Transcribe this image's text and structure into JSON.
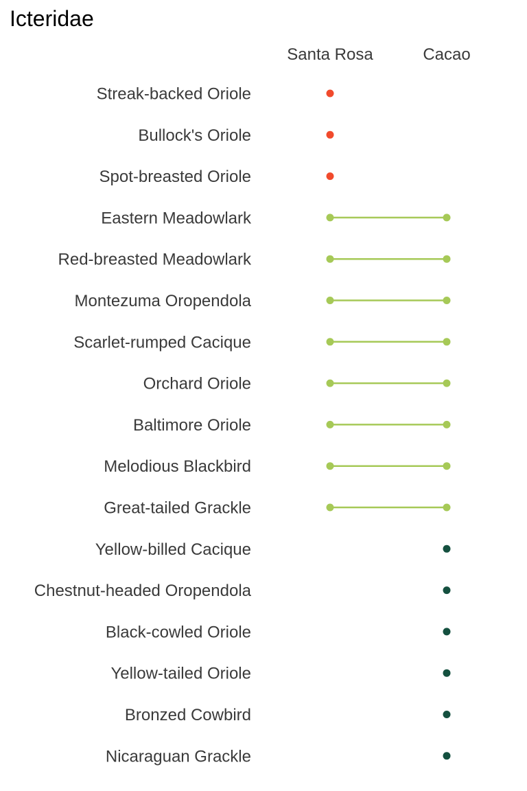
{
  "chart_data": {
    "type": "dumbbell",
    "title": "Icteridae",
    "columns": [
      "Santa Rosa",
      "Cacao"
    ],
    "colors": {
      "santa_rosa_only": "#f14a2c",
      "both": "#a6c957",
      "cacao_only": "#14503f"
    },
    "species": [
      {
        "name": "Streak-backed Oriole",
        "santa_rosa": true,
        "cacao": false
      },
      {
        "name": "Bullock's Oriole",
        "santa_rosa": true,
        "cacao": false
      },
      {
        "name": "Spot-breasted Oriole",
        "santa_rosa": true,
        "cacao": false
      },
      {
        "name": "Eastern Meadowlark",
        "santa_rosa": true,
        "cacao": true
      },
      {
        "name": "Red-breasted Meadowlark",
        "santa_rosa": true,
        "cacao": true
      },
      {
        "name": "Montezuma Oropendola",
        "santa_rosa": true,
        "cacao": true
      },
      {
        "name": "Scarlet-rumped Cacique",
        "santa_rosa": true,
        "cacao": true
      },
      {
        "name": "Orchard Oriole",
        "santa_rosa": true,
        "cacao": true
      },
      {
        "name": "Baltimore Oriole",
        "santa_rosa": true,
        "cacao": true
      },
      {
        "name": "Melodious Blackbird",
        "santa_rosa": true,
        "cacao": true
      },
      {
        "name": "Great-tailed Grackle",
        "santa_rosa": true,
        "cacao": true
      },
      {
        "name": "Yellow-billed Cacique",
        "santa_rosa": false,
        "cacao": true
      },
      {
        "name": "Chestnut-headed Oropendola",
        "santa_rosa": false,
        "cacao": true
      },
      {
        "name": "Black-cowled Oriole",
        "santa_rosa": false,
        "cacao": true
      },
      {
        "name": "Yellow-tailed Oriole",
        "santa_rosa": false,
        "cacao": true
      },
      {
        "name": "Bronzed Cowbird",
        "santa_rosa": false,
        "cacao": true
      },
      {
        "name": "Nicaraguan Grackle",
        "santa_rosa": false,
        "cacao": true
      }
    ],
    "legend": "none",
    "grid": false
  }
}
